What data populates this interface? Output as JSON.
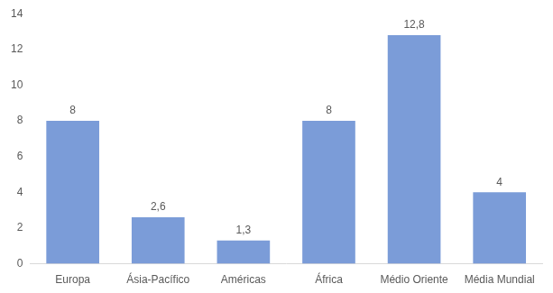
{
  "chart_data": {
    "type": "bar",
    "categories": [
      "Europa",
      "Ásia-Pacífico",
      "Américas",
      "África",
      "Médio Oriente",
      "Média Mundial"
    ],
    "values": [
      8,
      2.6,
      1.3,
      8,
      12.8,
      4
    ],
    "value_labels": [
      "8",
      "2,6",
      "1,3",
      "8",
      "12,8",
      "4"
    ],
    "color": "#7b9cd8",
    "ylim": [
      0,
      14
    ],
    "yticks": [
      0,
      2,
      4,
      6,
      8,
      10,
      12,
      14
    ],
    "grid": false,
    "data_labels": true
  }
}
